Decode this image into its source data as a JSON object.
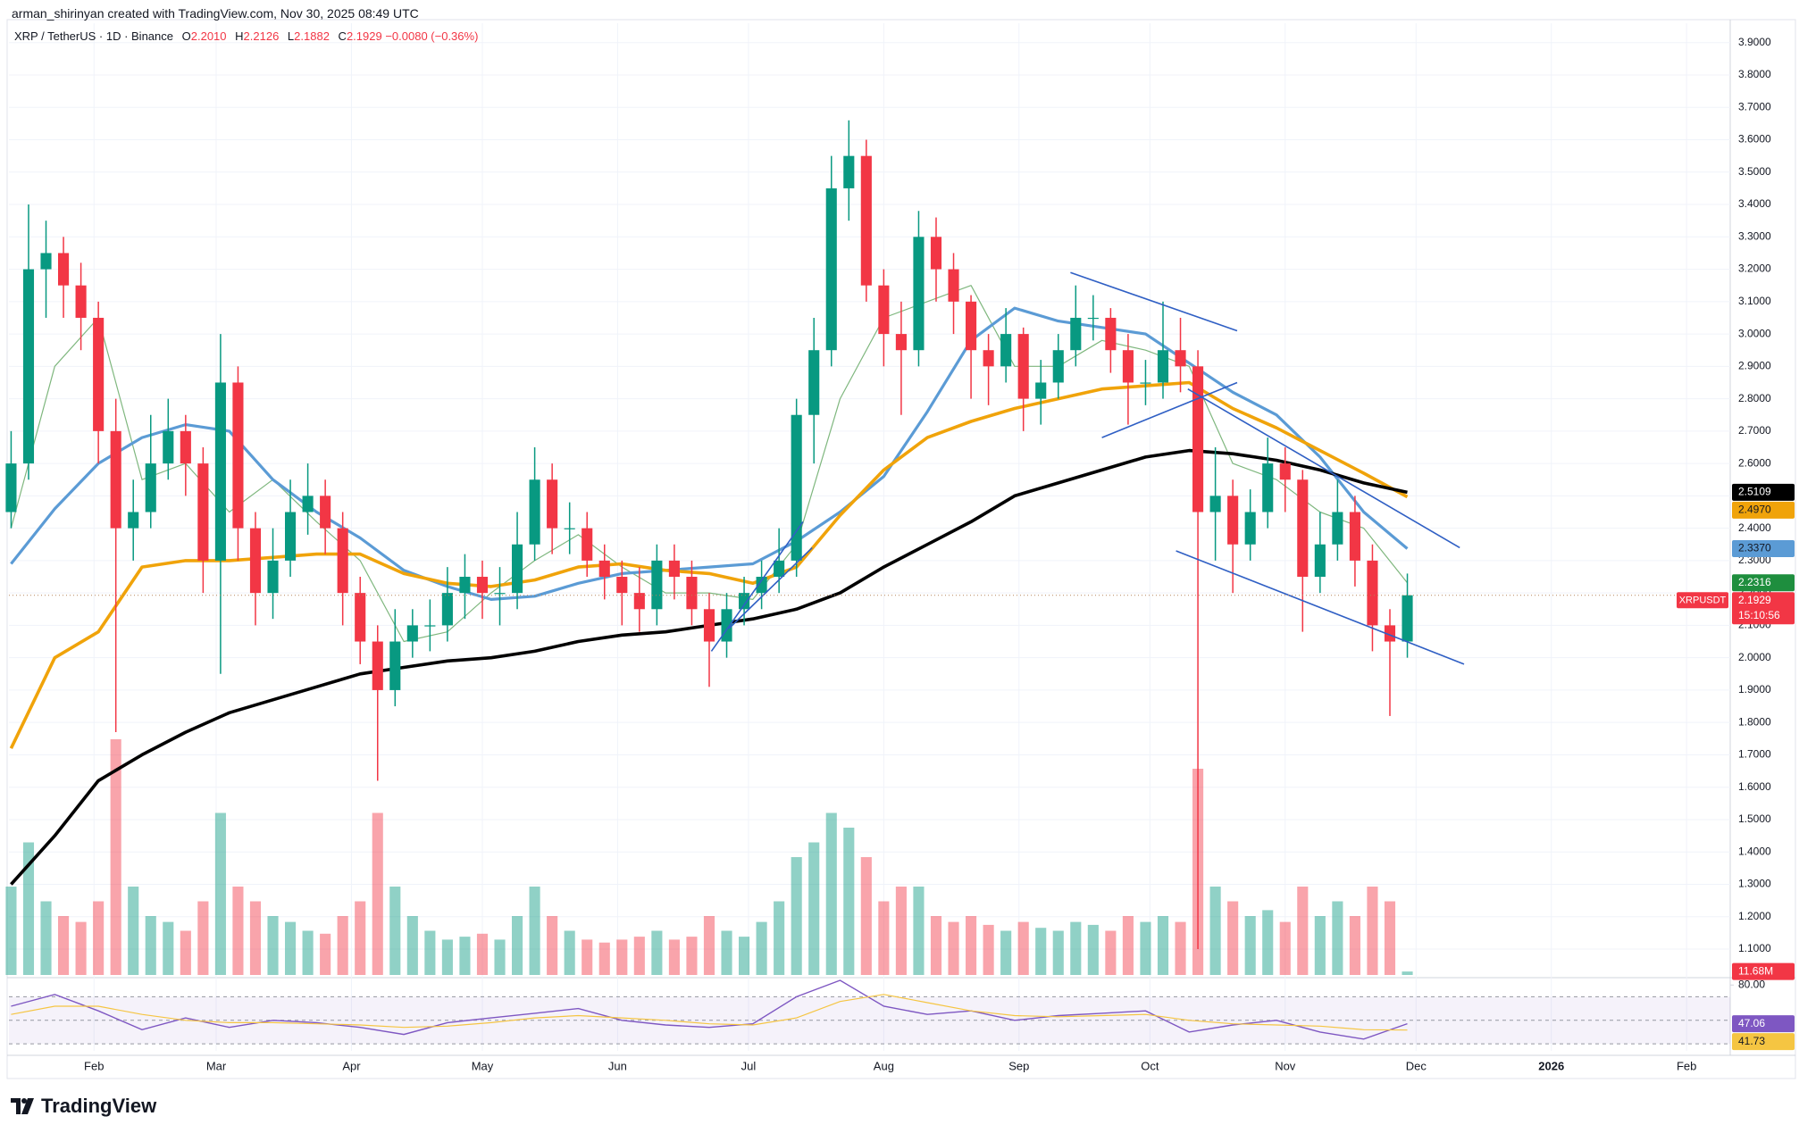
{
  "header": {
    "credit": "arman_shirinyan created with TradingView.com, Nov 30, 2025 08:49 UTC",
    "symbol": "XRP / TetherUS · 1D · Binance",
    "ohlc": [
      {
        "key": "O",
        "value": "2.2010"
      },
      {
        "key": "H",
        "value": "2.2126"
      },
      {
        "key": "L",
        "value": "2.1882"
      },
      {
        "key": "C",
        "value": "2.1929"
      }
    ],
    "change": "−0.0080 (−0.36%)"
  },
  "footer": {
    "brand": "TradingView"
  },
  "chart_data": [
    {
      "type": "candlestick",
      "up_color": "#089981",
      "down_color": "#f23645",
      "grid": true,
      "xlim": [
        11.5,
        406
      ],
      "ylim": [
        1.02,
        3.96
      ],
      "xticks": [
        {
          "value": 31,
          "label": "Feb"
        },
        {
          "value": 59,
          "label": "Mar"
        },
        {
          "value": 90,
          "label": "Apr"
        },
        {
          "value": 120,
          "label": "May"
        },
        {
          "value": 151,
          "label": "Jun"
        },
        {
          "value": 181,
          "label": "Jul"
        },
        {
          "value": 212,
          "label": "Aug"
        },
        {
          "value": 243,
          "label": "Sep"
        },
        {
          "value": 273,
          "label": "Oct"
        },
        {
          "value": 304,
          "label": "Nov"
        },
        {
          "value": 334,
          "label": "Dec"
        },
        {
          "value": 365,
          "label": "2026"
        },
        {
          "value": 396,
          "label": "Feb"
        }
      ],
      "yticks": [
        {
          "value": 1.1,
          "label": "1.1000"
        },
        {
          "value": 1.2,
          "label": "1.2000"
        },
        {
          "value": 1.3,
          "label": "1.3000"
        },
        {
          "value": 1.4,
          "label": "1.4000"
        },
        {
          "value": 1.5,
          "label": "1.5000"
        },
        {
          "value": 1.6,
          "label": "1.6000"
        },
        {
          "value": 1.7,
          "label": "1.7000"
        },
        {
          "value": 1.8,
          "label": "1.8000"
        },
        {
          "value": 1.9,
          "label": "1.9000"
        },
        {
          "value": 2.0,
          "label": "2.0000"
        },
        {
          "value": 2.1,
          "label": "2.1000"
        },
        {
          "value": 2.2,
          "label": "2.2000"
        },
        {
          "value": 2.3,
          "label": "2.3000"
        },
        {
          "value": 2.4,
          "label": "2.4000"
        },
        {
          "value": 2.5,
          "label": "2.5000"
        },
        {
          "value": 2.6,
          "label": "2.6000"
        },
        {
          "value": 2.7,
          "label": "2.7000"
        },
        {
          "value": 2.8,
          "label": "2.8000"
        },
        {
          "value": 2.9,
          "label": "2.9000"
        },
        {
          "value": 3.0,
          "label": "3.0000"
        },
        {
          "value": 3.1,
          "label": "3.1000"
        },
        {
          "value": 3.2,
          "label": "3.2000"
        },
        {
          "value": 3.3,
          "label": "3.3000"
        },
        {
          "value": 3.4,
          "label": "3.4000"
        },
        {
          "value": 3.5,
          "label": "3.5000"
        },
        {
          "value": 3.6,
          "label": "3.6000"
        },
        {
          "value": 3.7,
          "label": "3.7000"
        },
        {
          "value": 3.8,
          "label": "3.8000"
        },
        {
          "value": 3.9,
          "label": "3.9000"
        }
      ],
      "x": [
        12,
        16,
        20,
        24,
        28,
        32,
        36,
        40,
        44,
        48,
        52,
        56,
        60,
        64,
        68,
        72,
        76,
        80,
        84,
        88,
        92,
        96,
        100,
        104,
        108,
        112,
        116,
        120,
        124,
        128,
        132,
        136,
        140,
        144,
        148,
        152,
        156,
        160,
        164,
        168,
        172,
        176,
        180,
        184,
        188,
        192,
        196,
        200,
        204,
        208,
        212,
        216,
        220,
        224,
        228,
        232,
        236,
        240,
        244,
        248,
        252,
        256,
        260,
        264,
        268,
        272,
        276,
        280,
        284,
        288,
        292,
        296,
        300,
        304,
        308,
        312,
        316,
        320,
        324,
        328,
        332
      ],
      "open": [
        2.45,
        2.6,
        3.2,
        3.25,
        3.15,
        3.05,
        2.7,
        2.4,
        2.45,
        2.6,
        2.7,
        2.6,
        2.3,
        2.85,
        2.4,
        2.2,
        2.3,
        2.45,
        2.5,
        2.4,
        2.2,
        2.05,
        1.9,
        2.05,
        2.1,
        2.1,
        2.2,
        2.25,
        2.2,
        2.2,
        2.35,
        2.55,
        2.4,
        2.4,
        2.3,
        2.25,
        2.2,
        2.15,
        2.3,
        2.25,
        2.15,
        2.05,
        2.15,
        2.2,
        2.25,
        2.3,
        2.75,
        2.95,
        3.45,
        3.55,
        3.15,
        3.0,
        2.95,
        3.3,
        3.2,
        3.1,
        2.95,
        2.9,
        3.0,
        2.8,
        2.85,
        2.95,
        3.05,
        3.05,
        2.95,
        2.85,
        2.85,
        2.95,
        2.9,
        2.45,
        2.5,
        2.35,
        2.45,
        2.6,
        2.55,
        2.25,
        2.35,
        2.45,
        2.3,
        2.1,
        2.05
      ],
      "high": [
        2.7,
        3.4,
        3.35,
        3.3,
        3.22,
        3.1,
        2.8,
        2.55,
        2.75,
        2.8,
        2.75,
        2.65,
        3.0,
        2.9,
        2.45,
        2.4,
        2.55,
        2.6,
        2.55,
        2.45,
        2.25,
        2.1,
        2.15,
        2.15,
        2.18,
        2.28,
        2.32,
        2.3,
        2.28,
        2.45,
        2.65,
        2.6,
        2.48,
        2.45,
        2.35,
        2.3,
        2.28,
        2.35,
        2.35,
        2.3,
        2.2,
        2.2,
        2.25,
        2.3,
        2.4,
        2.8,
        3.05,
        3.55,
        3.66,
        3.6,
        3.2,
        3.1,
        3.38,
        3.36,
        3.25,
        3.12,
        3.0,
        3.08,
        3.02,
        2.92,
        3.0,
        3.15,
        3.12,
        3.08,
        3.0,
        2.92,
        3.1,
        3.05,
        2.95,
        2.65,
        2.55,
        2.52,
        2.68,
        2.65,
        2.58,
        2.45,
        2.55,
        2.5,
        2.35,
        2.15,
        2.26
      ],
      "low": [
        2.4,
        2.55,
        3.05,
        3.05,
        2.95,
        2.6,
        1.77,
        2.3,
        2.4,
        2.55,
        2.5,
        2.2,
        1.95,
        2.3,
        2.1,
        2.12,
        2.25,
        2.38,
        2.32,
        2.1,
        1.98,
        1.62,
        1.85,
        2.0,
        2.02,
        2.05,
        2.12,
        2.12,
        2.1,
        2.15,
        2.3,
        2.32,
        2.32,
        2.25,
        2.18,
        2.1,
        2.08,
        2.1,
        2.18,
        2.1,
        1.91,
        2.0,
        2.1,
        2.15,
        2.2,
        2.25,
        2.6,
        2.9,
        3.35,
        3.1,
        2.9,
        2.75,
        2.9,
        3.1,
        3.0,
        2.8,
        2.78,
        2.85,
        2.7,
        2.72,
        2.8,
        2.9,
        2.98,
        2.88,
        2.72,
        2.78,
        2.8,
        2.82,
        1.1,
        2.3,
        2.2,
        2.3,
        2.4,
        2.45,
        2.08,
        2.2,
        2.3,
        2.22,
        2.02,
        1.82,
        2.0
      ],
      "close": [
        2.6,
        3.2,
        3.25,
        3.15,
        3.05,
        2.7,
        2.4,
        2.45,
        2.6,
        2.7,
        2.6,
        2.3,
        2.85,
        2.4,
        2.2,
        2.3,
        2.45,
        2.5,
        2.4,
        2.2,
        2.05,
        1.9,
        2.05,
        2.1,
        2.1,
        2.2,
        2.25,
        2.2,
        2.2,
        2.35,
        2.55,
        2.4,
        2.4,
        2.3,
        2.25,
        2.2,
        2.15,
        2.3,
        2.25,
        2.15,
        2.05,
        2.15,
        2.2,
        2.25,
        2.3,
        2.75,
        2.95,
        3.45,
        3.55,
        3.15,
        3.0,
        2.95,
        3.3,
        3.2,
        3.1,
        2.95,
        2.9,
        3.0,
        2.8,
        2.85,
        2.95,
        3.05,
        3.05,
        2.95,
        2.85,
        2.85,
        2.95,
        2.9,
        2.45,
        2.5,
        2.35,
        2.45,
        2.6,
        2.55,
        2.25,
        2.35,
        2.45,
        2.3,
        2.1,
        2.05,
        2.1929
      ],
      "price_tag": {
        "symbol": "XRPUSDT",
        "countdown": "15:10:56",
        "color": "#f23645",
        "line_color": "#b5835a"
      },
      "volume": {
        "values": [
          300,
          450,
          250,
          200,
          180,
          250,
          800,
          300,
          200,
          180,
          150,
          250,
          550,
          300,
          250,
          200,
          180,
          150,
          140,
          200,
          250,
          550,
          300,
          200,
          150,
          120,
          130,
          140,
          120,
          200,
          300,
          200,
          150,
          120,
          110,
          120,
          130,
          150,
          120,
          130,
          200,
          150,
          130,
          180,
          250,
          400,
          450,
          550,
          500,
          400,
          250,
          300,
          300,
          200,
          180,
          200,
          170,
          150,
          180,
          160,
          150,
          180,
          170,
          150,
          200,
          180,
          200,
          180,
          700,
          300,
          250,
          200,
          220,
          180,
          300,
          200,
          250,
          200,
          300,
          250,
          11.68
        ],
        "last_label": "11.68M",
        "vlim": [
          0,
          1000
        ]
      },
      "overlay_x": [
        12,
        22,
        32,
        42,
        52,
        62,
        72,
        82,
        92,
        102,
        112,
        122,
        132,
        142,
        152,
        162,
        172,
        182,
        192,
        202,
        212,
        222,
        232,
        242,
        252,
        262,
        272,
        282,
        292,
        302,
        312,
        322,
        332
      ],
      "overlays": [
        {
          "color": "#7fb77e",
          "width": 1.2,
          "text_color": "#ffffff",
          "tag_color": "#1e8e3e",
          "last_label": "2.2316",
          "values": [
            2.4,
            2.9,
            3.05,
            2.55,
            2.6,
            2.45,
            2.55,
            2.42,
            2.3,
            2.05,
            2.08,
            2.2,
            2.3,
            2.38,
            2.28,
            2.2,
            2.2,
            2.18,
            2.35,
            2.8,
            3.05,
            3.1,
            3.15,
            2.9,
            2.9,
            2.98,
            2.95,
            2.9,
            2.6,
            2.55,
            2.45,
            2.4,
            2.2316
          ]
        },
        {
          "color": "#5b9bd5",
          "width": 3.2,
          "text_color": "#131722",
          "tag_color": "#5b9bd5",
          "last_label": "2.3370",
          "values": [
            2.29,
            2.46,
            2.6,
            2.68,
            2.72,
            2.7,
            2.55,
            2.45,
            2.37,
            2.27,
            2.22,
            2.18,
            2.19,
            2.23,
            2.26,
            2.27,
            2.28,
            2.29,
            2.36,
            2.45,
            2.56,
            2.76,
            2.98,
            3.08,
            3.04,
            3.02,
            3.0,
            2.91,
            2.82,
            2.75,
            2.62,
            2.45,
            2.337
          ]
        },
        {
          "color": "#f0a30a",
          "width": 3.6,
          "text_color": "#131722",
          "tag_color": "#f0a30a",
          "last_label": "2.4970",
          "values": [
            1.72,
            2.0,
            2.08,
            2.28,
            2.3,
            2.3,
            2.31,
            2.32,
            2.32,
            2.26,
            2.23,
            2.22,
            2.24,
            2.28,
            2.29,
            2.27,
            2.26,
            2.23,
            2.28,
            2.44,
            2.58,
            2.68,
            2.73,
            2.77,
            2.8,
            2.83,
            2.84,
            2.85,
            2.77,
            2.71,
            2.64,
            2.57,
            2.497
          ]
        },
        {
          "color": "#000000",
          "width": 3.6,
          "text_color": "#ffffff",
          "tag_color": "#000000",
          "last_label": "2.5109",
          "values": [
            1.3,
            1.45,
            1.62,
            1.7,
            1.77,
            1.83,
            1.87,
            1.91,
            1.95,
            1.97,
            1.99,
            2.0,
            2.02,
            2.05,
            2.07,
            2.08,
            2.1,
            2.12,
            2.15,
            2.2,
            2.28,
            2.35,
            2.42,
            2.5,
            2.54,
            2.58,
            2.62,
            2.64,
            2.63,
            2.61,
            2.58,
            2.54,
            2.5109
          ]
        }
      ],
      "trendlines": {
        "color": "#2f5fc4",
        "lines": [
          {
            "x": [
              172.5,
              193.5
            ],
            "values": [
              2.02,
              2.42
            ]
          },
          {
            "x": [
              176.5,
              195.6
            ],
            "values": [
              2.09,
              2.34
            ]
          },
          {
            "x": [
              254.8,
              293
            ],
            "values": [
              3.19,
              3.01
            ]
          },
          {
            "x": [
              262,
              293
            ],
            "values": [
              2.68,
              2.85
            ]
          },
          {
            "x": [
              281.7,
              344
            ],
            "values": [
              2.83,
              2.34
            ]
          },
          {
            "x": [
              279,
              345
            ],
            "values": [
              2.33,
              1.98
            ]
          }
        ]
      }
    },
    {
      "type": "line",
      "xlim": [
        11.5,
        406
      ],
      "ylim": [
        24,
        84
      ],
      "yticks": [
        {
          "value": 80,
          "label": "80.00"
        }
      ],
      "band": [
        30,
        70
      ],
      "midline": 50,
      "band_color": "#7e57c2",
      "x": [
        12,
        22,
        32,
        42,
        52,
        62,
        72,
        82,
        92,
        102,
        112,
        122,
        132,
        142,
        152,
        162,
        172,
        182,
        192,
        202,
        212,
        222,
        232,
        242,
        252,
        262,
        272,
        282,
        292,
        302,
        312,
        322,
        332
      ],
      "series": [
        {
          "color": "#7e57c2",
          "text_color": "#ffffff",
          "values": [
            62,
            72,
            58,
            42,
            52,
            44,
            50,
            48,
            44,
            38,
            48,
            52,
            56,
            60,
            50,
            46,
            44,
            47,
            70,
            84,
            62,
            55,
            58,
            50,
            54,
            56,
            58,
            40,
            46,
            50,
            40,
            34,
            47.06
          ]
        },
        {
          "color": "#f5c542",
          "text_color": "#131722",
          "values": [
            55,
            62,
            62,
            55,
            50,
            48,
            48,
            47,
            46,
            44,
            45,
            48,
            52,
            54,
            52,
            50,
            47,
            46,
            52,
            66,
            72,
            65,
            58,
            54,
            53,
            54,
            55,
            50,
            47,
            46,
            45,
            42,
            41.73
          ]
        }
      ]
    }
  ]
}
